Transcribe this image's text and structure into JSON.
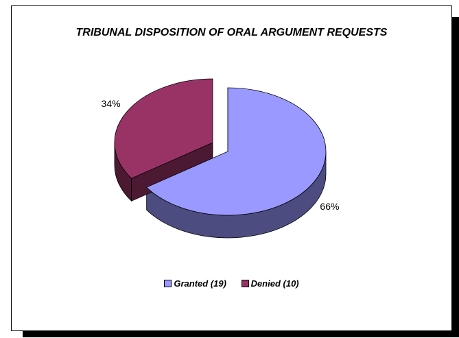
{
  "chart_data": {
    "type": "pie",
    "title": "TRIBUNAL DISPOSITION OF ORAL ARGUMENT REQUESTS",
    "slices": [
      {
        "label": "Granted (19)",
        "value": 19,
        "percent_label": "66%",
        "color": "#9999ff",
        "side_color": "#4c4c80"
      },
      {
        "label": "Denied (10)",
        "value": 10,
        "percent_label": "34%",
        "color": "#993366",
        "side_color": "#4c1933"
      }
    ],
    "legend_position": "bottom",
    "three_d": true,
    "exploded": true
  }
}
